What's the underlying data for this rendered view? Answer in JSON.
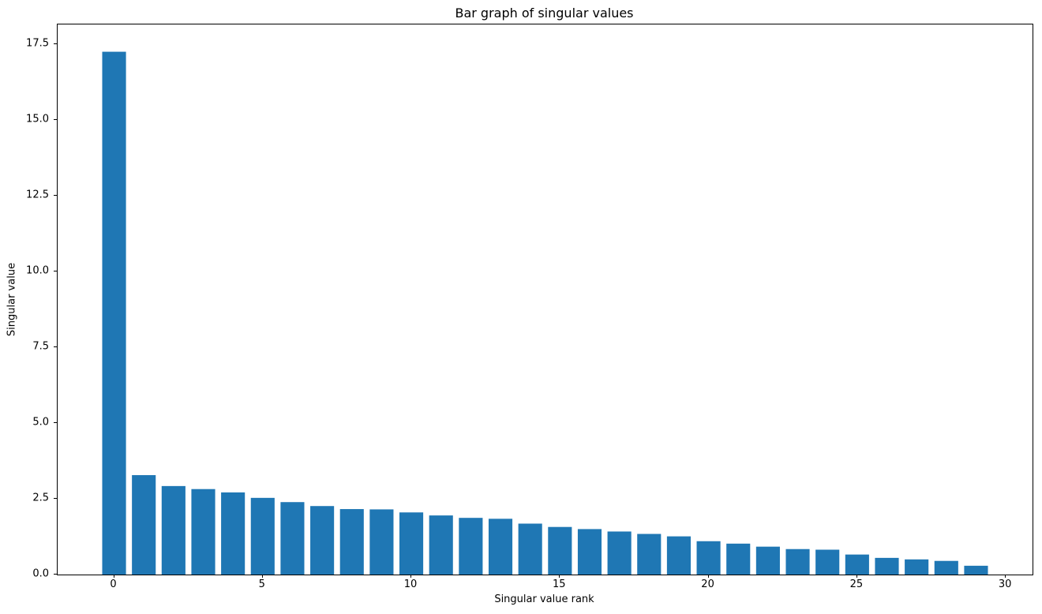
{
  "figure": {
    "background": "#ffffff"
  },
  "chart_data": {
    "type": "bar",
    "title": "Bar graph of singular values",
    "xlabel": "Singular value rank",
    "ylabel": "Singular value",
    "bar_color": "#1f77b4",
    "grid": false,
    "legend": null,
    "x": [
      0,
      1,
      2,
      3,
      4,
      5,
      6,
      7,
      8,
      9,
      10,
      11,
      12,
      13,
      14,
      15,
      16,
      17,
      18,
      19,
      20,
      21,
      22,
      23,
      24,
      25,
      26,
      27,
      28,
      29
    ],
    "values": [
      17.25,
      3.28,
      2.92,
      2.82,
      2.71,
      2.53,
      2.39,
      2.26,
      2.16,
      2.15,
      2.05,
      1.95,
      1.87,
      1.84,
      1.68,
      1.57,
      1.5,
      1.42,
      1.34,
      1.26,
      1.1,
      1.02,
      0.92,
      0.84,
      0.82,
      0.66,
      0.55,
      0.5,
      0.45,
      0.29
    ],
    "bar_width": 0.8,
    "xlim": [
      -1.9,
      30.9
    ],
    "ylim": [
      0,
      18.15
    ],
    "xticks": [
      0,
      5,
      10,
      15,
      20,
      25,
      30
    ],
    "xtick_labels": [
      "0",
      "5",
      "10",
      "15",
      "20",
      "25",
      "30"
    ],
    "yticks": [
      0.0,
      2.5,
      5.0,
      7.5,
      10.0,
      12.5,
      15.0,
      17.5
    ],
    "ytick_labels": [
      "0.0",
      "2.5",
      "5.0",
      "7.5",
      "10.0",
      "12.5",
      "15.0",
      "17.5"
    ]
  }
}
